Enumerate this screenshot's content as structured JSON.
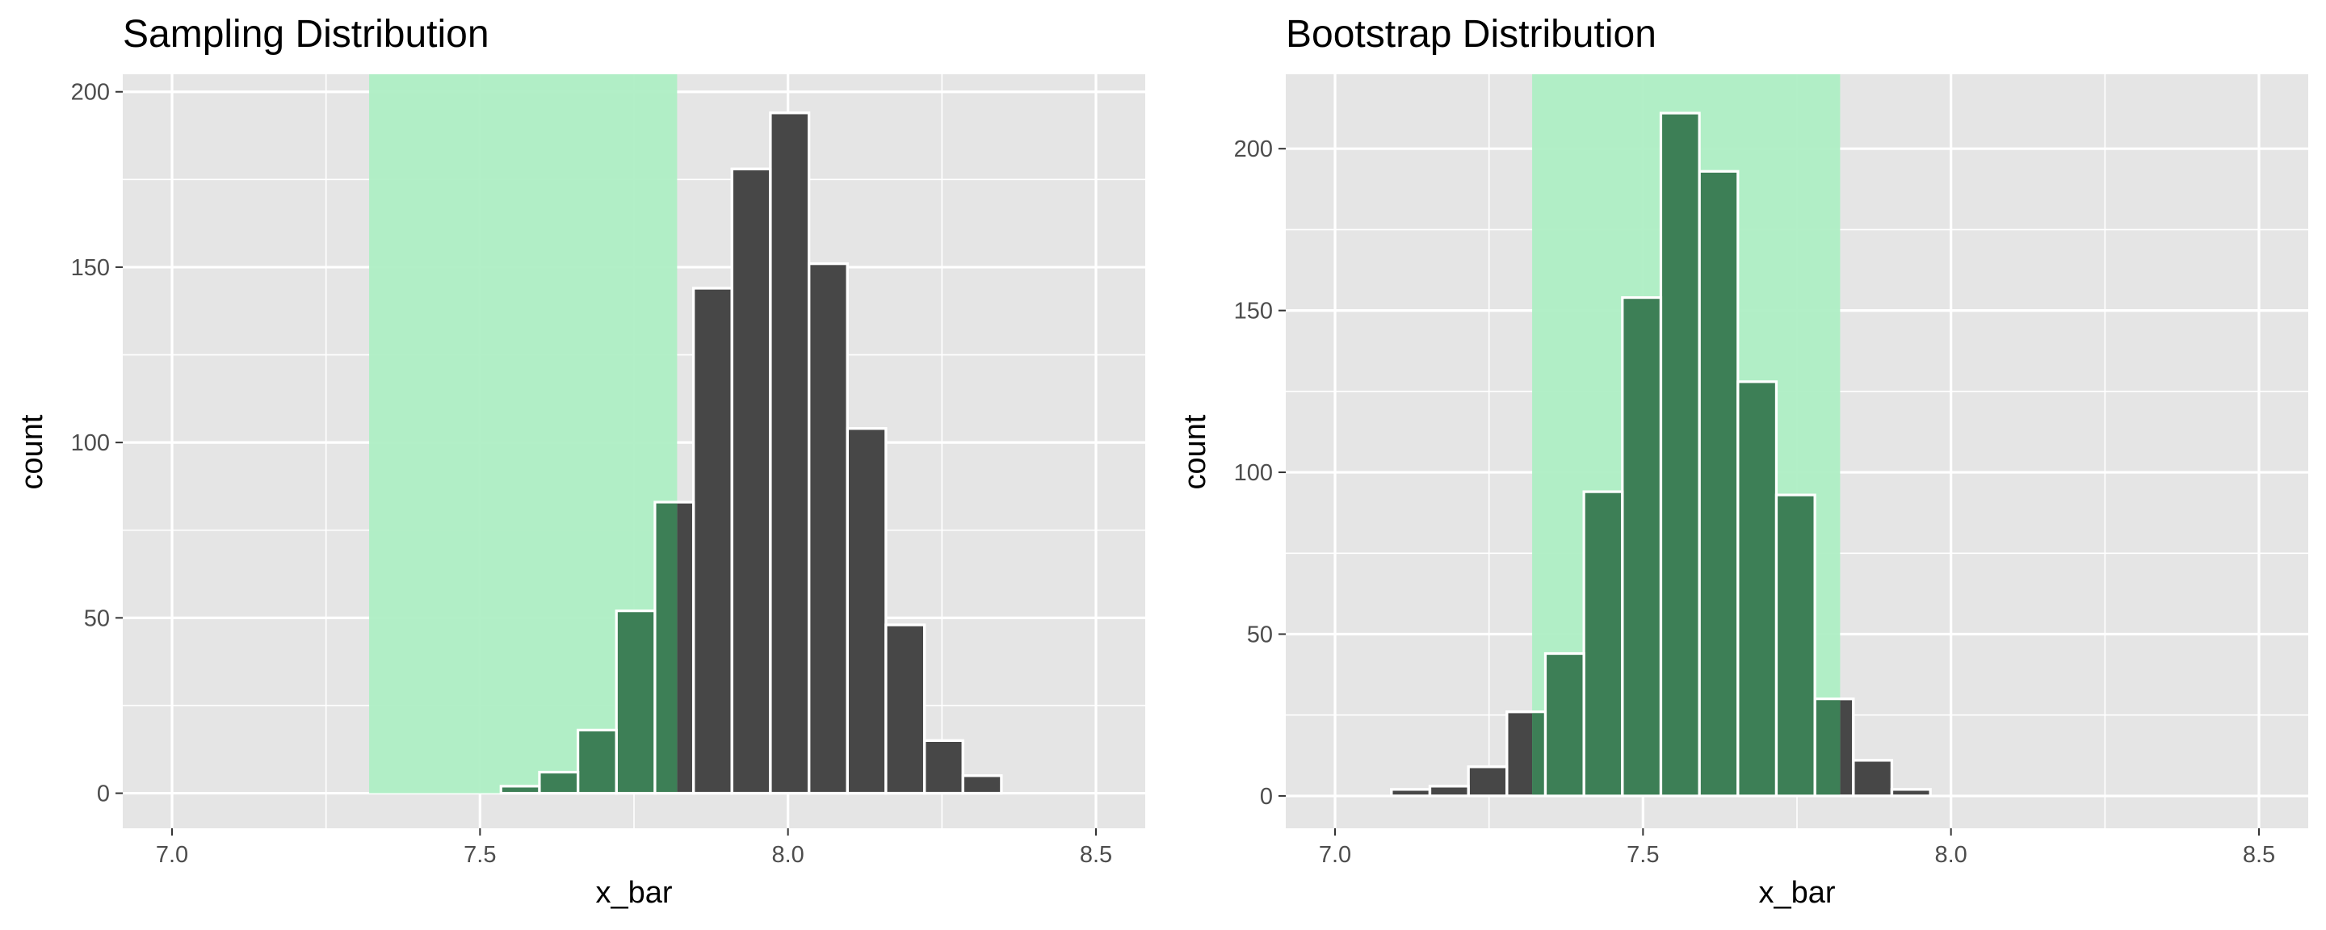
{
  "colors": {
    "panel_bg": "#e5e5e5",
    "grid": "#ffffff",
    "bar_fill": "#474747",
    "bar_stroke": "#ffffff",
    "shade": "#aeeec4",
    "shade_opacity": 0.95,
    "bar_in_shade": "#3d7f56"
  },
  "chart_data": [
    {
      "type": "bar",
      "title": "Sampling Distribution",
      "xlabel": "x_bar",
      "ylabel": "count",
      "xlim": [
        6.92,
        8.58
      ],
      "ylim": [
        -10,
        205
      ],
      "xticks": [
        7.0,
        7.5,
        8.0,
        8.5
      ],
      "xtick_labels": [
        "7.0",
        "7.5",
        "8.0",
        "8.5"
      ],
      "yticks": [
        0,
        50,
        100,
        150,
        200
      ],
      "ytick_labels": [
        "0",
        "50",
        "100",
        "150",
        "200"
      ],
      "bin_width": 0.0625,
      "bins": [
        {
          "start": 7.534,
          "count": 2
        },
        {
          "start": 7.5965,
          "count": 6
        },
        {
          "start": 7.659,
          "count": 18
        },
        {
          "start": 7.7215,
          "count": 52
        },
        {
          "start": 7.784,
          "count": 83
        },
        {
          "start": 7.8465,
          "count": 144
        },
        {
          "start": 7.909,
          "count": 178
        },
        {
          "start": 7.9715,
          "count": 194
        },
        {
          "start": 8.034,
          "count": 151
        },
        {
          "start": 8.0965,
          "count": 104
        },
        {
          "start": 8.159,
          "count": 48
        },
        {
          "start": 8.2215,
          "count": 15
        },
        {
          "start": 8.284,
          "count": 5
        }
      ],
      "shaded_interval": [
        7.32,
        7.82
      ]
    },
    {
      "type": "bar",
      "title": "Bootstrap Distribution",
      "xlabel": "x_bar",
      "ylabel": "count",
      "xlim": [
        6.92,
        8.58
      ],
      "ylim": [
        -10,
        223
      ],
      "xticks": [
        7.0,
        7.5,
        8.0,
        8.5
      ],
      "xtick_labels": [
        "7.0",
        "7.5",
        "8.0",
        "8.5"
      ],
      "yticks": [
        0,
        50,
        100,
        150,
        200
      ],
      "ytick_labels": [
        "0",
        "50",
        "100",
        "150",
        "200"
      ],
      "bin_width": 0.0625,
      "bins": [
        {
          "start": 7.0915,
          "count": 2
        },
        {
          "start": 7.154,
          "count": 3
        },
        {
          "start": 7.2165,
          "count": 9
        },
        {
          "start": 7.279,
          "count": 26
        },
        {
          "start": 7.3415,
          "count": 44
        },
        {
          "start": 7.404,
          "count": 94
        },
        {
          "start": 7.4665,
          "count": 154
        },
        {
          "start": 7.529,
          "count": 211
        },
        {
          "start": 7.5915,
          "count": 193
        },
        {
          "start": 7.654,
          "count": 128
        },
        {
          "start": 7.7165,
          "count": 93
        },
        {
          "start": 7.779,
          "count": 30
        },
        {
          "start": 7.8415,
          "count": 11
        },
        {
          "start": 7.904,
          "count": 2
        }
      ],
      "shaded_interval": [
        7.32,
        7.82
      ]
    }
  ]
}
